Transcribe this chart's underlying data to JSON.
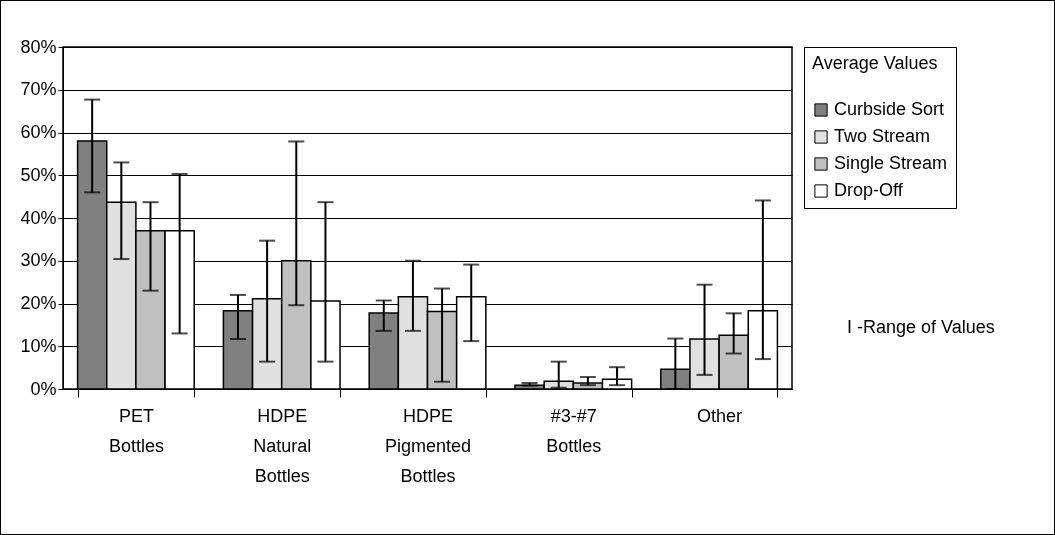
{
  "chart_data": {
    "type": "bar",
    "categories": [
      "PET Bottles",
      "HDPE Natural Bottles",
      "HDPE Pigmented Bottles",
      "#3-#7 Bottles",
      "Other"
    ],
    "legend_title": "Average Values",
    "legend": "right",
    "grid": "y",
    "ylim": [
      0,
      80
    ],
    "yticks": [
      {
        "value": 0,
        "label": "0%"
      },
      {
        "value": 10,
        "label": "10%"
      },
      {
        "value": 20,
        "label": "20%"
      },
      {
        "value": 30,
        "label": "30%"
      },
      {
        "value": 40,
        "label": "40%"
      },
      {
        "value": 50,
        "label": "50%"
      },
      {
        "value": 60,
        "label": "60%"
      },
      {
        "value": 70,
        "label": "70%"
      },
      {
        "value": 80,
        "label": "80%"
      }
    ],
    "annotations": [
      "I -Range of Values"
    ],
    "series": [
      {
        "name": "Curbside Sort",
        "color": "#808080",
        "values": [
          58,
          18.3,
          17.8,
          0.9,
          4.6
        ],
        "errors": [
          [
            46,
            67.7
          ],
          [
            11.7,
            22
          ],
          [
            13.6,
            20.7
          ],
          [
            0.8,
            1.4
          ],
          [
            0,
            11.8
          ]
        ]
      },
      {
        "name": "Two Stream",
        "color": "#e0e0e0",
        "values": [
          43.7,
          21.1,
          21.6,
          1.8,
          11.7
        ],
        "errors": [
          [
            30.4,
            53
          ],
          [
            6.4,
            34.7
          ],
          [
            13.6,
            30
          ],
          [
            0.3,
            6.4
          ],
          [
            3.3,
            24.4
          ]
        ]
      },
      {
        "name": "Single Stream",
        "color": "#c0c0c0",
        "values": [
          37,
          30,
          18.1,
          1.4,
          12.6
        ],
        "errors": [
          [
            23,
            43.7
          ],
          [
            19.6,
            57.9
          ],
          [
            1.7,
            23.5
          ],
          [
            0.9,
            2.8
          ],
          [
            8.3,
            17.7
          ]
        ]
      },
      {
        "name": "Drop-Off",
        "color": "#ffffff",
        "values": [
          37,
          20.6,
          21.6,
          2.3,
          18.3
        ],
        "errors": [
          [
            13,
            50.3
          ],
          [
            6.4,
            43.7
          ],
          [
            11.2,
            29.1
          ],
          [
            0.9,
            5.1
          ],
          [
            7,
            44.1
          ]
        ]
      }
    ]
  }
}
